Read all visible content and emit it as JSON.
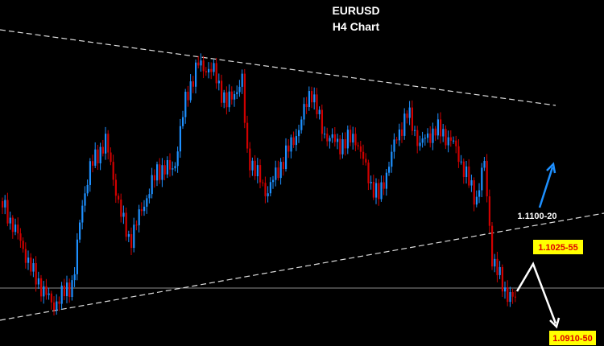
{
  "title": "EURUSD",
  "subtitle": "H4 Chart",
  "annotations": [
    "1.1100-20",
    "1.1025-55",
    "1.0910-50"
  ]
}
